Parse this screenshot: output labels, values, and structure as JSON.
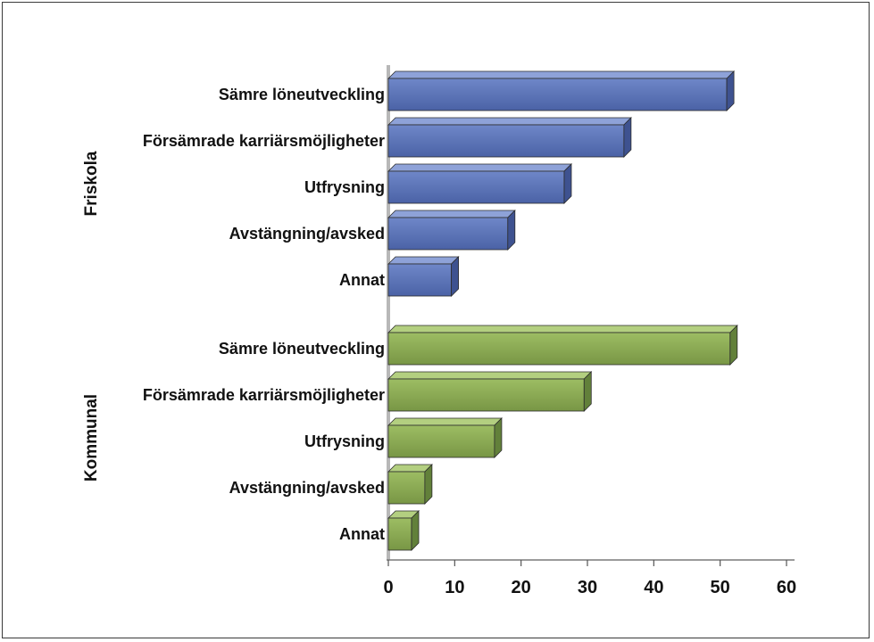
{
  "chart_data": {
    "type": "bar",
    "orientation": "horizontal",
    "groups": [
      {
        "name": "Friskola",
        "color": "#5a73b8",
        "categories": [
          "Sämre löneutveckling",
          "Försämrade karriärsmöjligheter",
          "Utfrysning",
          "Avstängning/avsked",
          "Annat"
        ],
        "values": [
          51,
          35.5,
          26.5,
          18,
          9.5
        ]
      },
      {
        "name": "Kommunal",
        "color": "#8aaa52",
        "categories": [
          "Sämre löneutveckling",
          "Försämrade karriärsmöjligheter",
          "Utfrysning",
          "Avstängning/avsked",
          "Annat"
        ],
        "values": [
          51.5,
          29.5,
          16,
          5.5,
          3.5
        ]
      }
    ],
    "xlim": [
      0,
      60
    ],
    "xticks": [
      "0",
      "10",
      "20",
      "30",
      "40",
      "50",
      "60"
    ],
    "grid": false,
    "legend": "none"
  }
}
